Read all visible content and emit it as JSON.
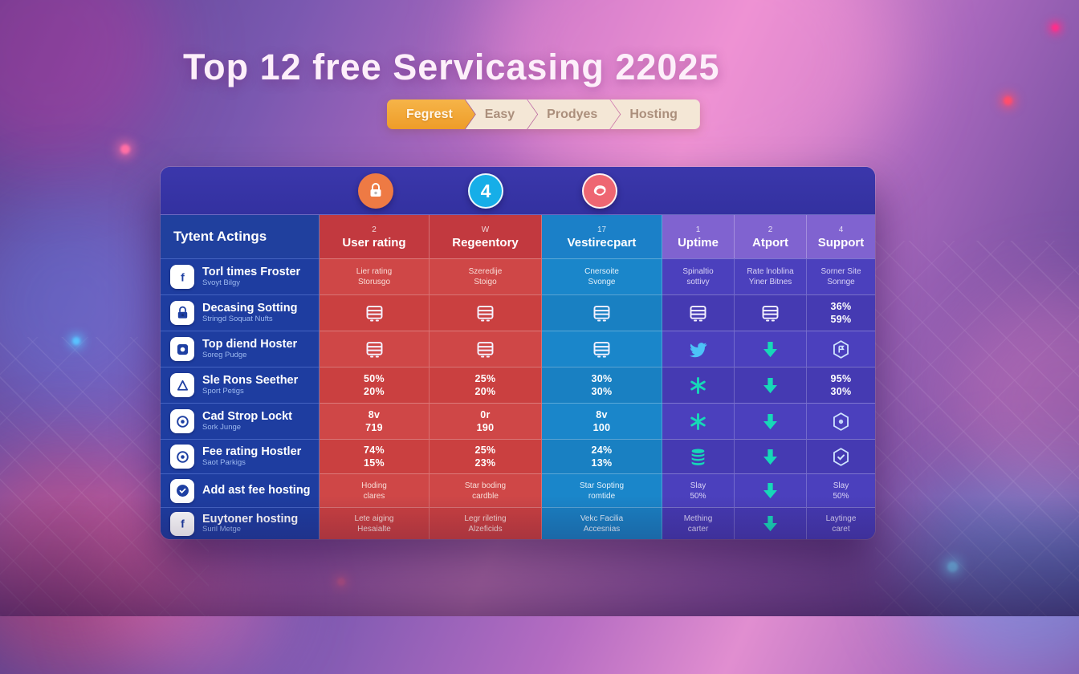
{
  "title": "Top 12 free Servicasing 22025",
  "ribbon": {
    "steps": [
      {
        "label": "Fegrest",
        "active": true
      },
      {
        "label": "Easy",
        "active": false
      },
      {
        "label": "Prodyes",
        "active": false
      },
      {
        "label": "Hosting",
        "active": false
      }
    ]
  },
  "badges": [
    {
      "name": "lock-badge",
      "icon": "lock-icon",
      "label": "",
      "color": "#ee7a44",
      "ring": false
    },
    {
      "name": "count-badge",
      "icon": "",
      "label": "4",
      "color": "#16aee8",
      "ring": true
    },
    {
      "name": "scribble-badge",
      "icon": "scribble-icon",
      "label": "",
      "color": "#ee6672",
      "ring": true
    }
  ],
  "table": {
    "header": {
      "label_col": "Tytent Actings",
      "cols": [
        {
          "sup": "2",
          "label": "User rating"
        },
        {
          "sup": "W",
          "label": "Regeentory"
        },
        {
          "sup": "17",
          "label": "Vestirecpart"
        },
        {
          "sup": "1",
          "label": "Uptime"
        },
        {
          "sup": "2",
          "label": "Atport"
        },
        {
          "sup": "4",
          "label": "Support"
        }
      ]
    },
    "rows": [
      {
        "icon": "f-logo-icon",
        "title": "Torl times Froster",
        "subtitle": "Svoyt Bilgy",
        "cells": [
          {
            "type": "text",
            "lines": [
              "Lier rating",
              "Storusgo"
            ]
          },
          {
            "type": "text",
            "lines": [
              "Szeredije",
              "Stoigo"
            ]
          },
          {
            "type": "text",
            "lines": [
              "Cnersoite",
              "Svonge"
            ]
          },
          {
            "type": "text",
            "lines": [
              "Spinaltio",
              "sottivy"
            ]
          },
          {
            "type": "text",
            "lines": [
              "Rate lnoblina",
              "Yiner Bitnes"
            ]
          },
          {
            "type": "text",
            "lines": [
              "Sorner Site",
              "Sonnge"
            ]
          }
        ]
      },
      {
        "icon": "lock-icon",
        "title": "Decasing Sotting",
        "subtitle": "Stringd Soquat Nufts",
        "cells": [
          {
            "type": "icon",
            "icon": "server-icon"
          },
          {
            "type": "icon",
            "icon": "server-icon"
          },
          {
            "type": "icon",
            "icon": "server-icon"
          },
          {
            "type": "icon",
            "icon": "server-icon"
          },
          {
            "type": "icon",
            "icon": "server-icon"
          },
          {
            "type": "num",
            "lines": [
              "36%",
              "59%"
            ]
          }
        ]
      },
      {
        "icon": "square-dot-icon",
        "title": "Top diend Hoster",
        "subtitle": "Soreg Pudge",
        "cells": [
          {
            "type": "icon",
            "icon": "server-icon"
          },
          {
            "type": "icon",
            "icon": "server-icon"
          },
          {
            "type": "icon",
            "icon": "server-icon"
          },
          {
            "type": "icon",
            "icon": "bird-icon"
          },
          {
            "type": "icon",
            "icon": "arrow-down-icon"
          },
          {
            "type": "icon",
            "icon": "hexagon-badge-icon"
          }
        ]
      },
      {
        "icon": "triangle-icon",
        "title": "Sle Rons Seether",
        "subtitle": "Sport Petigs",
        "cells": [
          {
            "type": "num",
            "lines": [
              "50%",
              "20%"
            ]
          },
          {
            "type": "num",
            "lines": [
              "25%",
              "20%"
            ]
          },
          {
            "type": "num",
            "lines": [
              "30%",
              "30%"
            ]
          },
          {
            "type": "icon",
            "icon": "snowflake-icon"
          },
          {
            "type": "icon",
            "icon": "arrow-down-icon"
          },
          {
            "type": "num",
            "lines": [
              "95%",
              "30%"
            ]
          }
        ]
      },
      {
        "icon": "circle-dot-icon",
        "title": "Cad Strop Lockt",
        "subtitle": "Sork Junge",
        "cells": [
          {
            "type": "num",
            "lines": [
              "8v",
              "719"
            ]
          },
          {
            "type": "num",
            "lines": [
              "0r",
              "190"
            ]
          },
          {
            "type": "num",
            "lines": [
              "8v",
              "100"
            ]
          },
          {
            "type": "icon",
            "icon": "snowflake-icon"
          },
          {
            "type": "icon",
            "icon": "arrow-down-icon"
          },
          {
            "type": "icon",
            "icon": "hexagon-dot-icon"
          }
        ]
      },
      {
        "icon": "circle-dot-icon",
        "title": "Fee rating Hostler",
        "subtitle": "Saot Parkigs",
        "cells": [
          {
            "type": "num",
            "lines": [
              "74%",
              "15%"
            ]
          },
          {
            "type": "num",
            "lines": [
              "25%",
              "23%"
            ]
          },
          {
            "type": "num",
            "lines": [
              "24%",
              "13%"
            ]
          },
          {
            "type": "icon",
            "icon": "database-icon"
          },
          {
            "type": "icon",
            "icon": "arrow-down-icon"
          },
          {
            "type": "icon",
            "icon": "hexagon-check-icon"
          }
        ]
      },
      {
        "icon": "check-circle-icon",
        "title": "Add ast fee hosting",
        "subtitle": "",
        "cells": [
          {
            "type": "text",
            "lines": [
              "Hoding",
              "clares"
            ]
          },
          {
            "type": "text",
            "lines": [
              "Star boding",
              "cardble"
            ]
          },
          {
            "type": "text",
            "lines": [
              "Star Sopting",
              "romtide"
            ]
          },
          {
            "type": "text",
            "lines": [
              "Slay",
              "50%"
            ]
          },
          {
            "type": "icon",
            "icon": "arrow-down-icon"
          },
          {
            "type": "text",
            "lines": [
              "Slay",
              "50%"
            ]
          }
        ]
      },
      {
        "icon": "f-logo-icon",
        "title": "Euytoner hosting",
        "subtitle": "Suril Metge",
        "cells": [
          {
            "type": "text",
            "lines": [
              "Lete aiging",
              "Hesaialte"
            ]
          },
          {
            "type": "text",
            "lines": [
              "Legr rileting",
              "Alzeficids"
            ]
          },
          {
            "type": "text",
            "lines": [
              "Vekc Facilia",
              "Accesnias"
            ]
          },
          {
            "type": "text",
            "lines": [
              "Mething",
              "carter"
            ]
          },
          {
            "type": "icon",
            "icon": "arrow-down-icon"
          },
          {
            "type": "text",
            "lines": [
              "Laytinge",
              "caret"
            ]
          }
        ]
      }
    ]
  },
  "colors": {
    "label_col_navy": "#1e3da0",
    "red_col": "#cf4747",
    "blue_col": "#1a86ca",
    "purple_col": "#4b40bd",
    "accent_teal": "#16d8b8",
    "ribbon_orange": "#f2a93b"
  }
}
